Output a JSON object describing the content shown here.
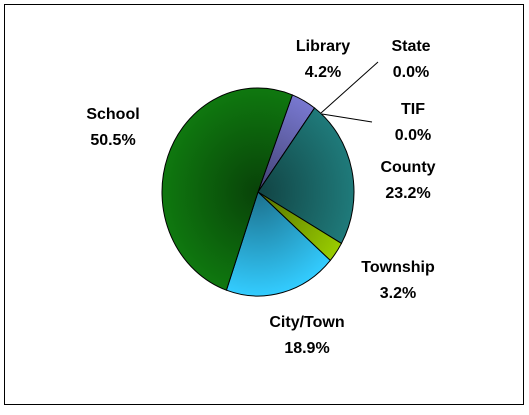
{
  "chart_data": {
    "type": "pie",
    "categories": [
      "Library",
      "State",
      "TIF",
      "County",
      "Township",
      "City/Town",
      "School"
    ],
    "values": [
      4.2,
      0.0,
      0.0,
      23.2,
      3.2,
      18.9,
      50.5
    ],
    "value_labels": [
      "4.2%",
      "0.0%",
      "0.0%",
      "23.2%",
      "3.2%",
      "18.9%",
      "50.5%"
    ],
    "colors": [
      "#7878d0",
      "#4a4aa0",
      "#808080",
      "#1f7a7a",
      "#99cc00",
      "#33ccff",
      "#0f780f"
    ]
  }
}
